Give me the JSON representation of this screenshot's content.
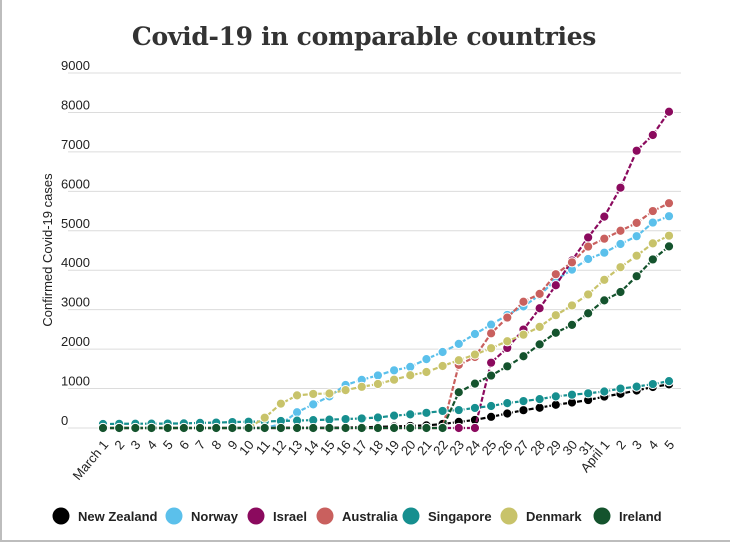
{
  "chart_data": {
    "type": "line",
    "title": "Covid-19 in comparable countries",
    "ylabel": "Confirmed Covid-19 cases",
    "xlabel": "",
    "ylim": [
      0,
      9000
    ],
    "yticks": [
      "0",
      "1000",
      "2000",
      "3000",
      "4000",
      "5000",
      "6000",
      "7000",
      "8000",
      "9000"
    ],
    "categories": [
      "March 1",
      "2",
      "3",
      "4",
      "5",
      "6",
      "7",
      "8",
      "9",
      "10",
      "11",
      "12",
      "13",
      "14",
      "15",
      "16",
      "17",
      "18",
      "19",
      "20",
      "21",
      "22",
      "23",
      "24",
      "25",
      "26",
      "27",
      "28",
      "29",
      "30",
      "31",
      "April 1",
      "2",
      "3",
      "4",
      "5"
    ],
    "grid": true,
    "legend_position": "bottom",
    "series": [
      {
        "name": "New Zealand",
        "color": "#000000",
        "values": [
          0,
          0,
          0,
          0,
          0,
          0,
          1,
          1,
          1,
          5,
          5,
          6,
          8,
          8,
          8,
          12,
          20,
          28,
          39,
          52,
          66,
          102,
          155,
          205,
          283,
          368,
          451,
          514,
          589,
          647,
          708,
          797,
          868,
          950,
          1039,
          1106
        ]
      },
      {
        "name": "Norway",
        "color": "#5bc0eb",
        "values": [
          0,
          0,
          0,
          0,
          0,
          0,
          0,
          0,
          0,
          0,
          0,
          96,
          400,
          598,
          801,
          1090,
          1221,
          1333,
          1463,
          1550,
          1746,
          1926,
          2132,
          2383,
          2621,
          2866,
          3084,
          3369,
          3755,
          4015,
          4284,
          4445,
          4665,
          4863,
          5208,
          5370
        ]
      },
      {
        "name": "Israel",
        "color": "#8b0a5e",
        "values": [
          0,
          0,
          0,
          0,
          0,
          0,
          0,
          0,
          0,
          0,
          0,
          0,
          0,
          0,
          0,
          0,
          0,
          0,
          0,
          0,
          0,
          0,
          0,
          0,
          1656,
          2030,
          2495,
          3035,
          3619,
          4247,
          4831,
          5358,
          6092,
          7030,
          7428,
          8018
        ]
      },
      {
        "name": "Australia",
        "color": "#c9605e",
        "values": [
          0,
          0,
          0,
          0,
          0,
          0,
          0,
          0,
          0,
          0,
          0,
          0,
          0,
          0,
          0,
          0,
          0,
          0,
          0,
          0,
          0,
          0,
          1600,
          1800,
          2400,
          2800,
          3200,
          3400,
          3900,
          4200,
          4600,
          4800,
          5000,
          5200,
          5500,
          5700
        ]
      },
      {
        "name": "Singapore",
        "color": "#168f8f",
        "values": [
          102,
          106,
          108,
          110,
          112,
          117,
          130,
          138,
          150,
          160,
          166,
          178,
          187,
          200,
          212,
          226,
          243,
          266,
          313,
          345,
          385,
          432,
          455,
          509,
          558,
          631,
          683,
          732,
          802,
          844,
          879,
          926,
          1000,
          1049,
          1114,
          1189
        ]
      },
      {
        "name": "Denmark",
        "color": "#c8c36a",
        "values": [
          0,
          0,
          0,
          0,
          0,
          0,
          0,
          0,
          0,
          0,
          262,
          617,
          827,
          864,
          875,
          960,
          1044,
          1115,
          1225,
          1337,
          1420,
          1572,
          1718,
          1862,
          2023,
          2200,
          2366,
          2564,
          2860,
          3107,
          3386,
          3757,
          4077,
          4369,
          4681,
          4875
        ]
      },
      {
        "name": "Ireland",
        "color": "#14532d",
        "values": [
          0,
          0,
          0,
          0,
          0,
          0,
          0,
          0,
          0,
          0,
          0,
          0,
          0,
          0,
          0,
          0,
          0,
          0,
          0,
          0,
          0,
          0,
          906,
          1125,
          1329,
          1564,
          1819,
          2121,
          2415,
          2615,
          2910,
          3235,
          3447,
          3849,
          4273,
          4604
        ]
      }
    ]
  }
}
